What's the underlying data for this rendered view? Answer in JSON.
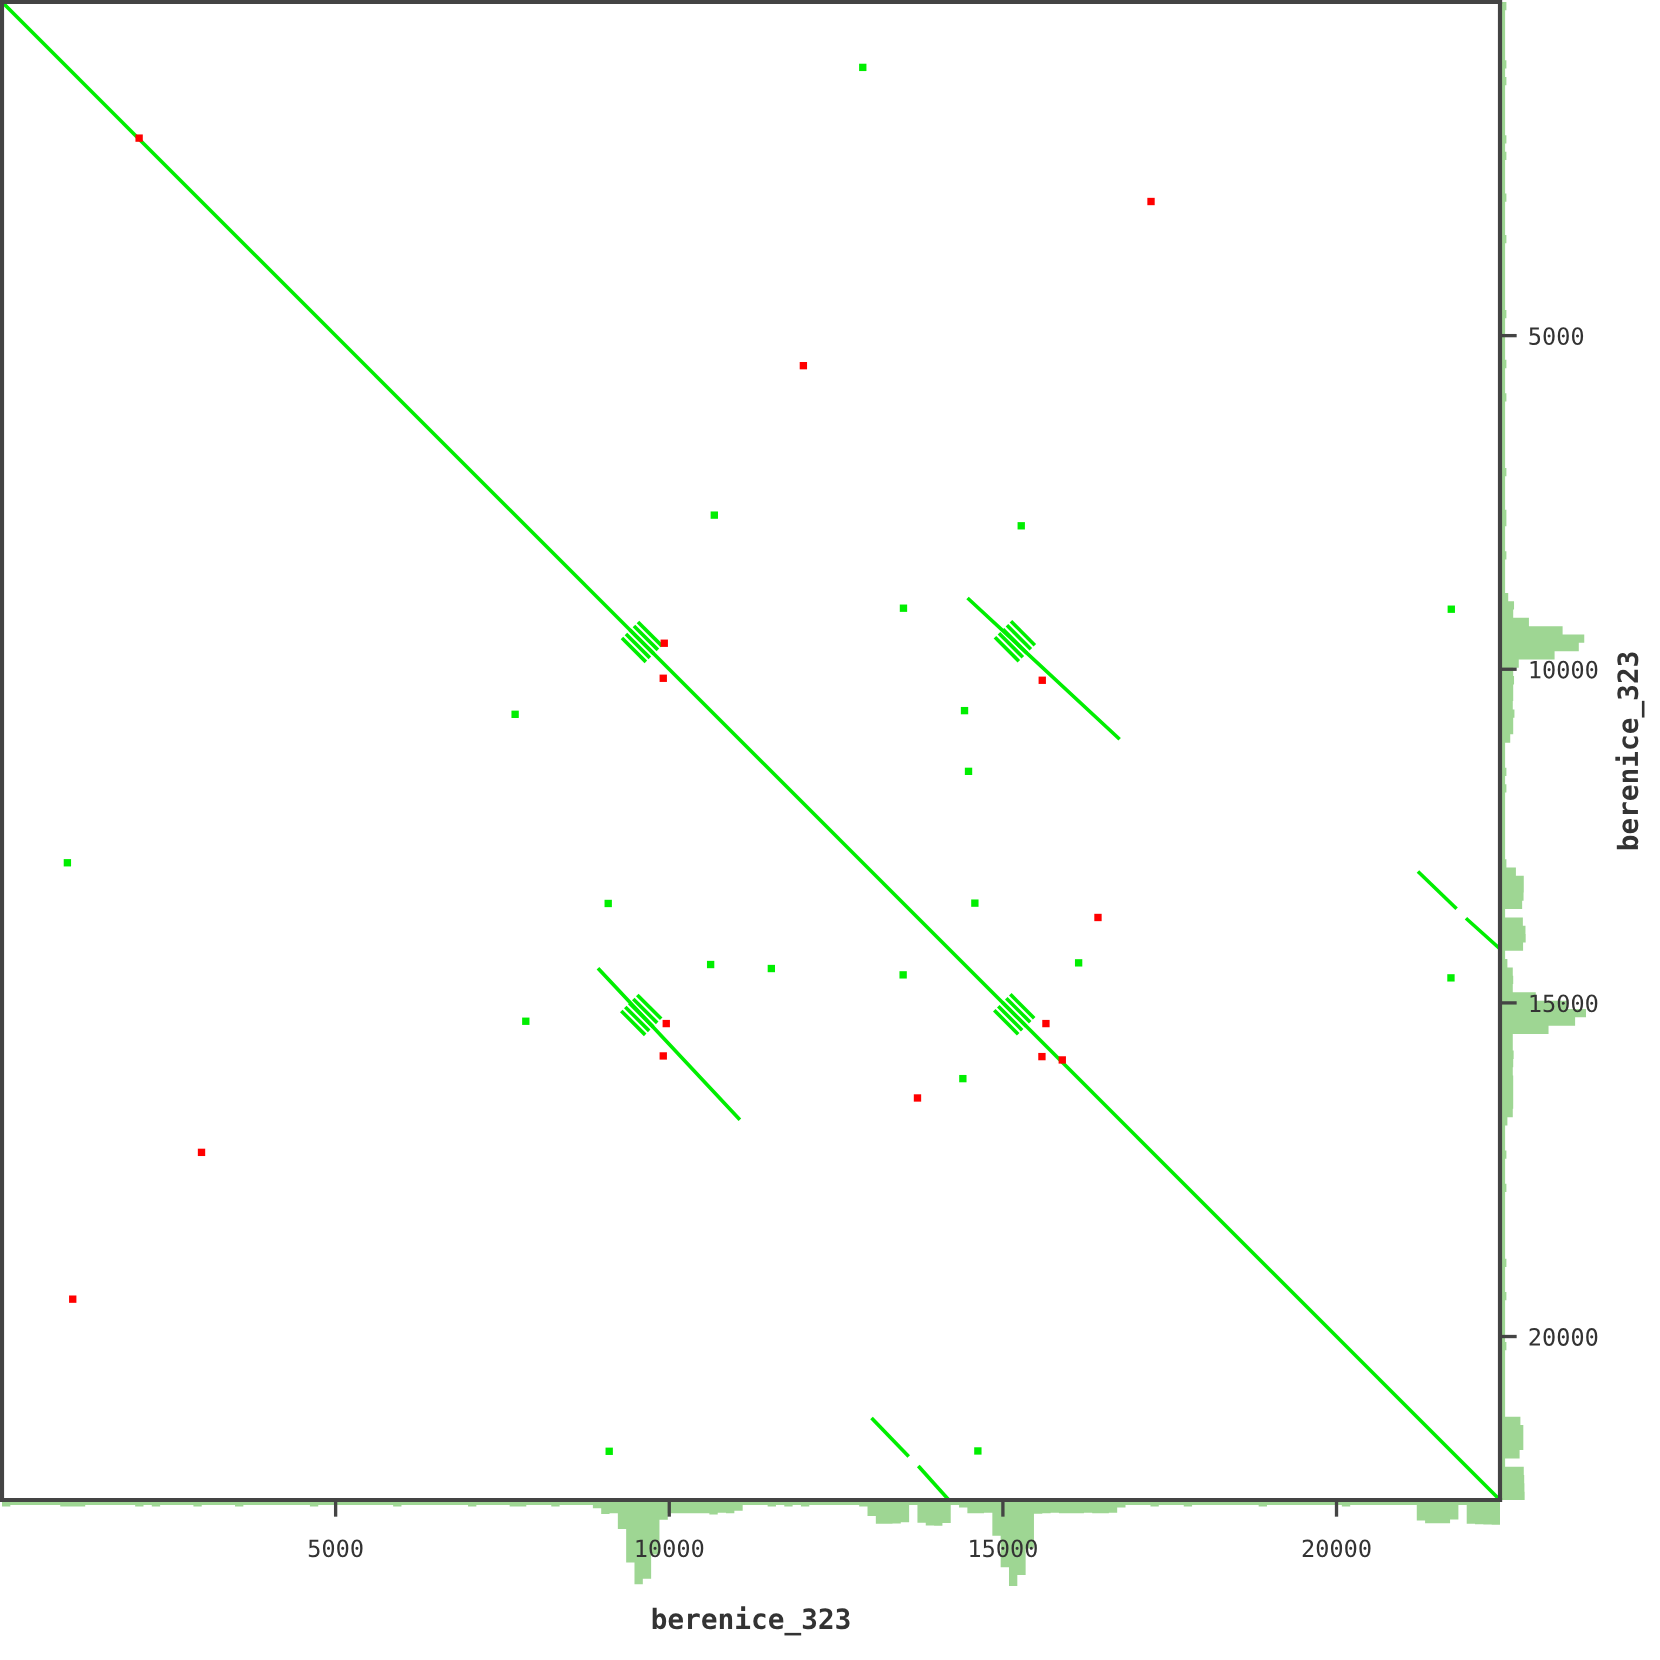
{
  "chart_data": {
    "type": "line",
    "xlabel": "berenice_323",
    "ylabel": "berenice_323",
    "xlim": [
      0,
      22450
    ],
    "ylim": [
      22450,
      0
    ],
    "xticks": [
      5000,
      10000,
      15000,
      20000
    ],
    "yticks": [
      5000,
      10000,
      15000,
      20000
    ],
    "tick_labels": "xy2",
    "series": [
      {
        "color": "#00ee00",
        "x": [
          0,
          22450
        ],
        "values": [
          0,
          22450
        ]
      },
      {
        "color": "#00ee00",
        "x": [
          14490,
          16730
        ],
        "values": [
          8950,
          11030
        ]
      },
      {
        "color": "#00ee00",
        "x": [
          8950,
          11040
        ],
        "values": [
          14500,
          16730
        ]
      },
      {
        "color": "#00ee00",
        "x": [
          21240,
          21780
        ],
        "values": [
          13050,
          13570
        ]
      },
      {
        "color": "#00ee00",
        "x": [
          21960,
          22450
        ],
        "values": [
          13750,
          14190
        ]
      },
      {
        "color": "#00ee00",
        "x": [
          13050,
          13570
        ],
        "values": [
          21240,
          21780
        ]
      },
      {
        "color": "#00ee00",
        "x": [
          13750,
          14190
        ],
        "values": [
          21960,
          22450
        ]
      },
      {
        "color": "#00ee00",
        "x": [
          9310,
          9630
        ],
        "values": [
          9550,
          9870
        ]
      },
      {
        "color": "#00ee00",
        "x": [
          9370,
          9690
        ],
        "values": [
          9490,
          9810
        ]
      },
      {
        "color": "#00ee00",
        "x": [
          9430,
          9750
        ],
        "values": [
          9430,
          9750
        ]
      },
      {
        "color": "#00ee00",
        "x": [
          9490,
          9810
        ],
        "values": [
          9370,
          9690
        ]
      },
      {
        "color": "#00ee00",
        "x": [
          9550,
          9870
        ],
        "values": [
          9310,
          9630
        ]
      },
      {
        "color": "#00ee00",
        "x": [
          14900,
          15220
        ],
        "values": [
          9540,
          9860
        ]
      },
      {
        "color": "#00ee00",
        "x": [
          14960,
          15280
        ],
        "values": [
          9480,
          9800
        ]
      },
      {
        "color": "#00ee00",
        "x": [
          15020,
          15340
        ],
        "values": [
          9420,
          9740
        ]
      },
      {
        "color": "#00ee00",
        "x": [
          15080,
          15400
        ],
        "values": [
          9360,
          9680
        ]
      },
      {
        "color": "#00ee00",
        "x": [
          15140,
          15460
        ],
        "values": [
          9300,
          9620
        ]
      },
      {
        "color": "#00ee00",
        "x": [
          9300,
          9620
        ],
        "values": [
          15140,
          15460
        ]
      },
      {
        "color": "#00ee00",
        "x": [
          9360,
          9680
        ],
        "values": [
          15080,
          15400
        ]
      },
      {
        "color": "#00ee00",
        "x": [
          9420,
          9740
        ],
        "values": [
          15020,
          15340
        ]
      },
      {
        "color": "#00ee00",
        "x": [
          9480,
          9800
        ],
        "values": [
          14960,
          15280
        ]
      },
      {
        "color": "#00ee00",
        "x": [
          9540,
          9860
        ],
        "values": [
          14900,
          15220
        ]
      },
      {
        "color": "#00ee00",
        "x": [
          14890,
          15210
        ],
        "values": [
          15130,
          15450
        ]
      },
      {
        "color": "#00ee00",
        "x": [
          14950,
          15270
        ],
        "values": [
          15070,
          15390
        ]
      },
      {
        "color": "#00ee00",
        "x": [
          15010,
          15330
        ],
        "values": [
          15010,
          15330
        ]
      },
      {
        "color": "#00ee00",
        "x": [
          15070,
          15390
        ],
        "values": [
          14950,
          15270
        ]
      },
      {
        "color": "#00ee00",
        "x": [
          15130,
          15450
        ],
        "values": [
          14890,
          15210
        ]
      },
      {
        "type": "scatter",
        "marker": "square",
        "color": "#00ee00",
        "x": [
          12900,
          980,
          15275,
          7850,
          10675,
          7690,
          13510,
          9085,
          21720,
          9100,
          14425,
          10620,
          14485,
          11530,
          16135,
          14400,
          14580,
          13505,
          21715,
          14625
        ],
        "values": [
          980,
          12900,
          7850,
          15275,
          7690,
          10675,
          9085,
          13510,
          9100,
          21720,
          10620,
          14425,
          11530,
          14485,
          14400,
          16135,
          13505,
          14580,
          14625,
          21715
        ]
      },
      {
        "type": "scatter",
        "marker": "square",
        "color": "#ff0000",
        "x": [
          2055,
          12010,
          17220,
          9925,
          9910,
          9955,
          9910,
          2990,
          1060,
          15645,
          15585,
          15890,
          16425,
          13720,
          15590
        ],
        "values": [
          2040,
          5450,
          2990,
          9610,
          10135,
          15310,
          15795,
          17240,
          19440,
          15310,
          15805,
          15855,
          13720,
          16425,
          10165
        ]
      }
    ]
  }
}
